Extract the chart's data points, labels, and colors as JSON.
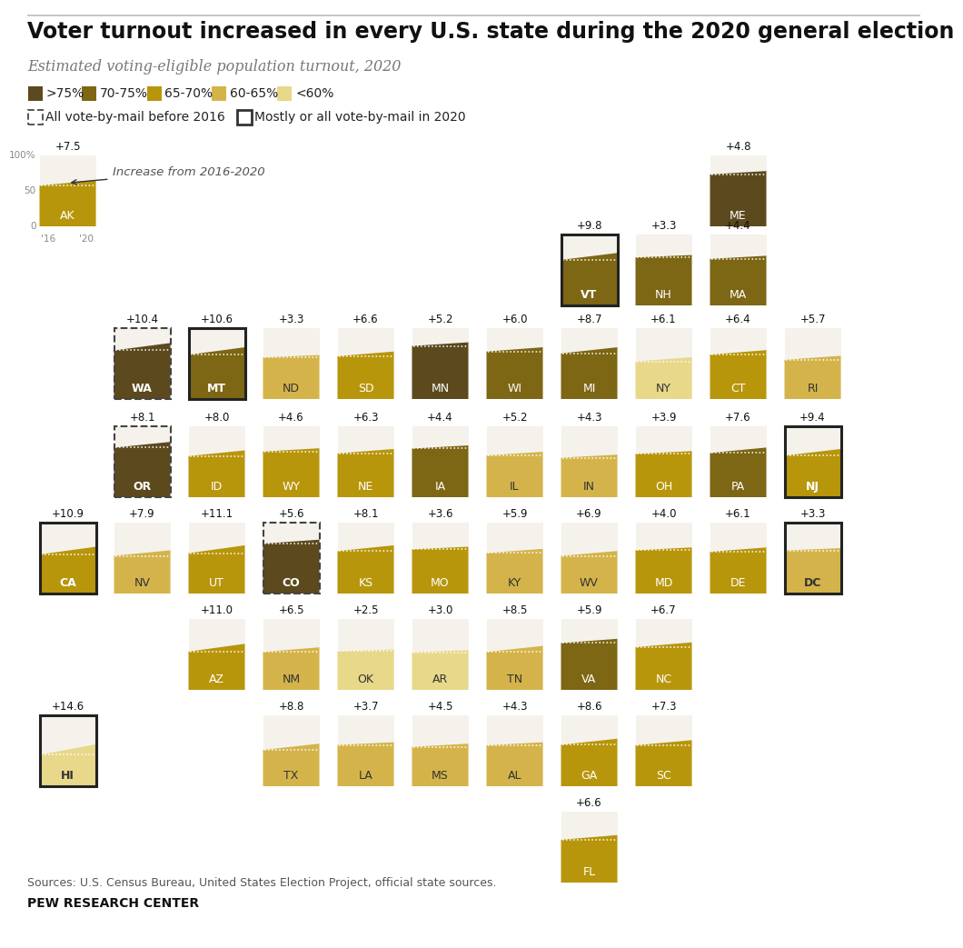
{
  "title": "Voter turnout increased in every U.S. state during the 2020 general election",
  "subtitle": "Estimated voting-eligible population turnout, 2020",
  "source": "Sources: U.S. Census Bureau, United States Election Project, official state sources.",
  "footer": "PEW RESEARCH CENTER",
  "colors": {
    "gt75": "#5C4A1E",
    "c70_75": "#7D6614",
    "c65_70": "#B8960C",
    "c60_65": "#D4B44A",
    "lt60": "#E8D88A",
    "bg": "#F5F2EC"
  },
  "states": [
    {
      "abbr": "AK",
      "row": 0,
      "col": 0,
      "increase": 7.5,
      "t2020": 65,
      "t2016": 57.5,
      "dashed": false,
      "border": false
    },
    {
      "abbr": "ME",
      "row": 0,
      "col": 9,
      "increase": 4.8,
      "t2020": 78,
      "t2016": 73.2,
      "dashed": false,
      "border": false
    },
    {
      "abbr": "VT",
      "row": 1,
      "col": 7,
      "increase": 9.8,
      "t2020": 74,
      "t2016": 64.2,
      "dashed": false,
      "border": true
    },
    {
      "abbr": "NH",
      "row": 1,
      "col": 8,
      "increase": 3.3,
      "t2020": 71,
      "t2016": 67.7,
      "dashed": false,
      "border": false
    },
    {
      "abbr": "MA",
      "row": 1,
      "col": 9,
      "increase": 4.4,
      "t2020": 70,
      "t2016": 65.6,
      "dashed": false,
      "border": false
    },
    {
      "abbr": "WA",
      "row": 2,
      "col": 1,
      "increase": 10.4,
      "t2020": 79,
      "t2016": 68.6,
      "dashed": true,
      "border": false
    },
    {
      "abbr": "MT",
      "row": 2,
      "col": 2,
      "increase": 10.6,
      "t2020": 73,
      "t2016": 62.4,
      "dashed": false,
      "border": true
    },
    {
      "abbr": "ND",
      "row": 2,
      "col": 3,
      "increase": 3.3,
      "t2020": 62,
      "t2016": 58.7,
      "dashed": false,
      "border": false
    },
    {
      "abbr": "SD",
      "row": 2,
      "col": 4,
      "increase": 6.6,
      "t2020": 67,
      "t2016": 60.4,
      "dashed": false,
      "border": false
    },
    {
      "abbr": "MN",
      "row": 2,
      "col": 5,
      "increase": 5.2,
      "t2020": 80,
      "t2016": 74.8,
      "dashed": false,
      "border": false
    },
    {
      "abbr": "WI",
      "row": 2,
      "col": 6,
      "increase": 6.0,
      "t2020": 73,
      "t2016": 67.0,
      "dashed": false,
      "border": false
    },
    {
      "abbr": "MI",
      "row": 2,
      "col": 7,
      "increase": 8.7,
      "t2020": 73,
      "t2016": 64.3,
      "dashed": false,
      "border": false
    },
    {
      "abbr": "NY",
      "row": 2,
      "col": 8,
      "increase": 6.1,
      "t2020": 59,
      "t2016": 52.9,
      "dashed": false,
      "border": false
    },
    {
      "abbr": "CT",
      "row": 2,
      "col": 9,
      "increase": 6.4,
      "t2020": 69,
      "t2016": 62.6,
      "dashed": false,
      "border": false
    },
    {
      "abbr": "RI",
      "row": 2,
      "col": 10,
      "increase": 5.7,
      "t2020": 61,
      "t2016": 55.3,
      "dashed": false,
      "border": false
    },
    {
      "abbr": "OR",
      "row": 3,
      "col": 1,
      "increase": 8.1,
      "t2020": 78,
      "t2016": 69.9,
      "dashed": true,
      "border": false
    },
    {
      "abbr": "ID",
      "row": 3,
      "col": 2,
      "increase": 8.0,
      "t2020": 66,
      "t2016": 58.0,
      "dashed": false,
      "border": false
    },
    {
      "abbr": "WY",
      "row": 3,
      "col": 3,
      "increase": 4.6,
      "t2020": 69,
      "t2016": 64.4,
      "dashed": false,
      "border": false
    },
    {
      "abbr": "NE",
      "row": 3,
      "col": 4,
      "increase": 6.3,
      "t2020": 68,
      "t2016": 61.7,
      "dashed": false,
      "border": false
    },
    {
      "abbr": "IA",
      "row": 3,
      "col": 5,
      "increase": 4.4,
      "t2020": 73,
      "t2016": 68.6,
      "dashed": false,
      "border": false
    },
    {
      "abbr": "IL",
      "row": 3,
      "col": 6,
      "increase": 5.2,
      "t2020": 64,
      "t2016": 58.8,
      "dashed": false,
      "border": false
    },
    {
      "abbr": "IN",
      "row": 3,
      "col": 7,
      "increase": 4.3,
      "t2020": 60,
      "t2016": 55.7,
      "dashed": false,
      "border": false
    },
    {
      "abbr": "OH",
      "row": 3,
      "col": 8,
      "increase": 3.9,
      "t2020": 65,
      "t2016": 61.1,
      "dashed": false,
      "border": false
    },
    {
      "abbr": "PA",
      "row": 3,
      "col": 9,
      "increase": 7.6,
      "t2020": 70,
      "t2016": 62.4,
      "dashed": false,
      "border": false
    },
    {
      "abbr": "NJ",
      "row": 3,
      "col": 10,
      "increase": 9.4,
      "t2020": 68,
      "t2016": 58.6,
      "dashed": false,
      "border": true
    },
    {
      "abbr": "CA",
      "row": 4,
      "col": 0,
      "increase": 10.9,
      "t2020": 66,
      "t2016": 55.1,
      "dashed": false,
      "border": true
    },
    {
      "abbr": "NV",
      "row": 4,
      "col": 1,
      "increase": 7.9,
      "t2020": 61,
      "t2016": 53.1,
      "dashed": false,
      "border": false
    },
    {
      "abbr": "UT",
      "row": 4,
      "col": 2,
      "increase": 11.1,
      "t2020": 68,
      "t2016": 56.9,
      "dashed": false,
      "border": false
    },
    {
      "abbr": "CO",
      "row": 4,
      "col": 3,
      "increase": 5.6,
      "t2020": 76,
      "t2016": 70.4,
      "dashed": true,
      "border": false
    },
    {
      "abbr": "KS",
      "row": 4,
      "col": 4,
      "increase": 8.1,
      "t2020": 68,
      "t2016": 59.9,
      "dashed": false,
      "border": false
    },
    {
      "abbr": "MO",
      "row": 4,
      "col": 5,
      "increase": 3.6,
      "t2020": 66,
      "t2016": 62.4,
      "dashed": false,
      "border": false
    },
    {
      "abbr": "KY",
      "row": 4,
      "col": 6,
      "increase": 5.9,
      "t2020": 63,
      "t2016": 57.1,
      "dashed": false,
      "border": false
    },
    {
      "abbr": "WV",
      "row": 4,
      "col": 7,
      "increase": 6.9,
      "t2020": 60,
      "t2016": 53.1,
      "dashed": false,
      "border": false
    },
    {
      "abbr": "MD",
      "row": 4,
      "col": 8,
      "increase": 4.0,
      "t2020": 65,
      "t2016": 61.0,
      "dashed": false,
      "border": false
    },
    {
      "abbr": "DE",
      "row": 4,
      "col": 9,
      "increase": 6.1,
      "t2020": 65,
      "t2016": 58.9,
      "dashed": false,
      "border": false
    },
    {
      "abbr": "DC",
      "row": 4,
      "col": 10,
      "increase": 3.3,
      "t2020": 64,
      "t2016": 60.7,
      "dashed": false,
      "border": true
    },
    {
      "abbr": "AZ",
      "row": 5,
      "col": 2,
      "increase": 11.0,
      "t2020": 65,
      "t2016": 54.0,
      "dashed": false,
      "border": false
    },
    {
      "abbr": "NM",
      "row": 5,
      "col": 3,
      "increase": 6.5,
      "t2020": 60,
      "t2016": 53.5,
      "dashed": false,
      "border": false
    },
    {
      "abbr": "OK",
      "row": 5,
      "col": 4,
      "increase": 2.5,
      "t2020": 57,
      "t2016": 54.5,
      "dashed": false,
      "border": false
    },
    {
      "abbr": "AR",
      "row": 5,
      "col": 5,
      "increase": 3.0,
      "t2020": 56,
      "t2016": 53.0,
      "dashed": false,
      "border": false
    },
    {
      "abbr": "TN",
      "row": 5,
      "col": 6,
      "increase": 8.5,
      "t2020": 62,
      "t2016": 53.5,
      "dashed": false,
      "border": false
    },
    {
      "abbr": "VA",
      "row": 5,
      "col": 7,
      "increase": 5.9,
      "t2020": 72,
      "t2016": 66.1,
      "dashed": false,
      "border": false
    },
    {
      "abbr": "NC",
      "row": 5,
      "col": 8,
      "increase": 6.7,
      "t2020": 67,
      "t2016": 60.3,
      "dashed": false,
      "border": false
    },
    {
      "abbr": "HI",
      "row": 6,
      "col": 0,
      "increase": 14.6,
      "t2020": 59,
      "t2016": 44.4,
      "dashed": false,
      "border": true
    },
    {
      "abbr": "TX",
      "row": 6,
      "col": 3,
      "increase": 8.8,
      "t2020": 60,
      "t2016": 51.2,
      "dashed": false,
      "border": false
    },
    {
      "abbr": "LA",
      "row": 6,
      "col": 4,
      "increase": 3.7,
      "t2020": 62,
      "t2016": 58.3,
      "dashed": false,
      "border": false
    },
    {
      "abbr": "MS",
      "row": 6,
      "col": 5,
      "increase": 4.5,
      "t2020": 60,
      "t2016": 55.5,
      "dashed": false,
      "border": false
    },
    {
      "abbr": "AL",
      "row": 6,
      "col": 6,
      "increase": 4.3,
      "t2020": 62,
      "t2016": 57.7,
      "dashed": false,
      "border": false
    },
    {
      "abbr": "GA",
      "row": 6,
      "col": 7,
      "increase": 8.6,
      "t2020": 67,
      "t2016": 58.4,
      "dashed": false,
      "border": false
    },
    {
      "abbr": "SC",
      "row": 6,
      "col": 8,
      "increase": 7.3,
      "t2020": 65,
      "t2016": 57.7,
      "dashed": false,
      "border": false
    },
    {
      "abbr": "FL",
      "row": 7,
      "col": 7,
      "increase": 6.6,
      "t2020": 67,
      "t2016": 60.4,
      "dashed": false,
      "border": false
    }
  ]
}
